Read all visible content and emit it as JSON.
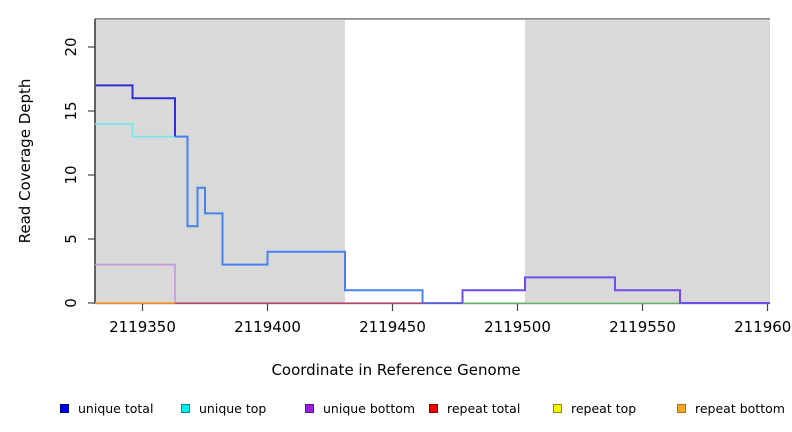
{
  "chart_data": {
    "type": "line",
    "subtype": "step",
    "title": "",
    "xlabel": "Coordinate in Reference Genome",
    "ylabel": "Read Coverage Depth",
    "xlim": [
      2119331,
      2119601
    ],
    "ylim": [
      0,
      22.5
    ],
    "x_ticks": [
      2119350,
      2119400,
      2119450,
      2119500,
      2119550,
      2119600
    ],
    "y_ticks": [
      0,
      5,
      10,
      15,
      20
    ],
    "grid": false,
    "legend_position": "bottom",
    "background_shading": {
      "color": "#d9d9d9",
      "top_value": 22.1,
      "regions": [
        [
          2119331,
          2119431
        ],
        [
          2119503,
          2119601
        ]
      ]
    },
    "top_rule": {
      "y_value": 22.2,
      "color": "#8c8c8c"
    },
    "series": [
      {
        "name": "unique total",
        "color": "#0000ff",
        "steps": [
          [
            2119331,
            17
          ],
          [
            2119346,
            16
          ],
          [
            2119363,
            13
          ],
          [
            2119368,
            6
          ],
          [
            2119372,
            9
          ],
          [
            2119375,
            7
          ],
          [
            2119382,
            3
          ],
          [
            2119400,
            4
          ],
          [
            2119431,
            1
          ],
          [
            2119462,
            0
          ],
          [
            2119478,
            1
          ],
          [
            2119503,
            2
          ],
          [
            2119539,
            1
          ],
          [
            2119565,
            0
          ],
          [
            2119601,
            0
          ]
        ]
      },
      {
        "name": "unique top",
        "color": "#00ffff",
        "steps": [
          [
            2119331,
            14
          ],
          [
            2119346,
            13
          ],
          [
            2119368,
            6
          ],
          [
            2119372,
            9
          ],
          [
            2119375,
            7
          ],
          [
            2119382,
            3
          ],
          [
            2119400,
            4
          ],
          [
            2119431,
            1
          ],
          [
            2119462,
            0
          ],
          [
            2119601,
            0
          ]
        ]
      },
      {
        "name": "unique bottom",
        "color": "#a020f0",
        "steps": [
          [
            2119331,
            3
          ],
          [
            2119363,
            0
          ],
          [
            2119478,
            1
          ],
          [
            2119503,
            2
          ],
          [
            2119539,
            1
          ],
          [
            2119565,
            0
          ],
          [
            2119601,
            0
          ]
        ]
      },
      {
        "name": "repeat total",
        "color": "#ff0000",
        "steps": [
          [
            2119331,
            0
          ],
          [
            2119601,
            0
          ]
        ]
      },
      {
        "name": "repeat top",
        "color": "#ffff00",
        "steps": [
          [
            2119331,
            0
          ],
          [
            2119601,
            0
          ]
        ]
      },
      {
        "name": "repeat bottom",
        "color": "#ffa500",
        "steps": [
          [
            2119331,
            0
          ],
          [
            2119601,
            0
          ]
        ]
      }
    ],
    "rendered_strokes": [
      {
        "name": "unique-top-visible",
        "color": "#74e6ef",
        "width": 1.6,
        "steps": [
          [
            2119331,
            14
          ],
          [
            2119346,
            13
          ],
          [
            2119363,
            13
          ]
        ]
      },
      {
        "name": "unique-total-dark",
        "color": "#2e2ed6",
        "width": 2,
        "steps": [
          [
            2119331,
            17
          ],
          [
            2119346,
            16
          ],
          [
            2119363,
            13
          ]
        ]
      },
      {
        "name": "unique-bottom-left",
        "color": "#c794e0",
        "width": 1.6,
        "steps": [
          [
            2119331,
            3
          ],
          [
            2119363,
            0
          ]
        ]
      },
      {
        "name": "repeat-bottom-zero",
        "color": "#faa239",
        "width": 1.8,
        "steps": [
          [
            2119331,
            0
          ],
          [
            2119363,
            0
          ]
        ]
      },
      {
        "name": "repeat-total-zero",
        "color": "#d75f80",
        "width": 1.6,
        "steps": [
          [
            2119363,
            0
          ],
          [
            2119462,
            0
          ]
        ]
      },
      {
        "name": "unique-total-over-top",
        "color": "#4583ee",
        "width": 2,
        "steps": [
          [
            2119363,
            13
          ],
          [
            2119368,
            6
          ],
          [
            2119372,
            9
          ],
          [
            2119375,
            7
          ],
          [
            2119382,
            3
          ],
          [
            2119400,
            4
          ],
          [
            2119431,
            1
          ],
          [
            2119462,
            0
          ]
        ]
      },
      {
        "name": "total-zero-run",
        "color": "#5f64e8",
        "width": 1.8,
        "steps": [
          [
            2119462,
            0
          ],
          [
            2119478,
            0
          ]
        ]
      },
      {
        "name": "top-repeat-zero-blend",
        "color": "#8cd98c",
        "width": 1.6,
        "steps": [
          [
            2119478,
            0
          ],
          [
            2119565,
            0
          ]
        ]
      },
      {
        "name": "unique-bottom-right",
        "color": "#6f4ceb",
        "width": 2,
        "steps": [
          [
            2119478,
            0
          ],
          [
            2119478,
            1
          ],
          [
            2119503,
            2
          ],
          [
            2119539,
            1
          ],
          [
            2119565,
            0
          ],
          [
            2119601,
            0
          ]
        ]
      }
    ]
  },
  "legend": {
    "items": [
      {
        "label": "unique total",
        "fill": "#0000ee",
        "border": "#00008b"
      },
      {
        "label": "unique top",
        "fill": "#00eeee",
        "border": "#008b8b"
      },
      {
        "label": "unique bottom",
        "fill": "#9a1fe0",
        "border": "#5e0d9e"
      },
      {
        "label": "repeat total",
        "fill": "#ee0000",
        "border": "#8b0000"
      },
      {
        "label": "repeat top",
        "fill": "#f5f500",
        "border": "#8b8b00"
      },
      {
        "label": "repeat bottom",
        "fill": "#f5a623",
        "border": "#b87400"
      }
    ]
  }
}
